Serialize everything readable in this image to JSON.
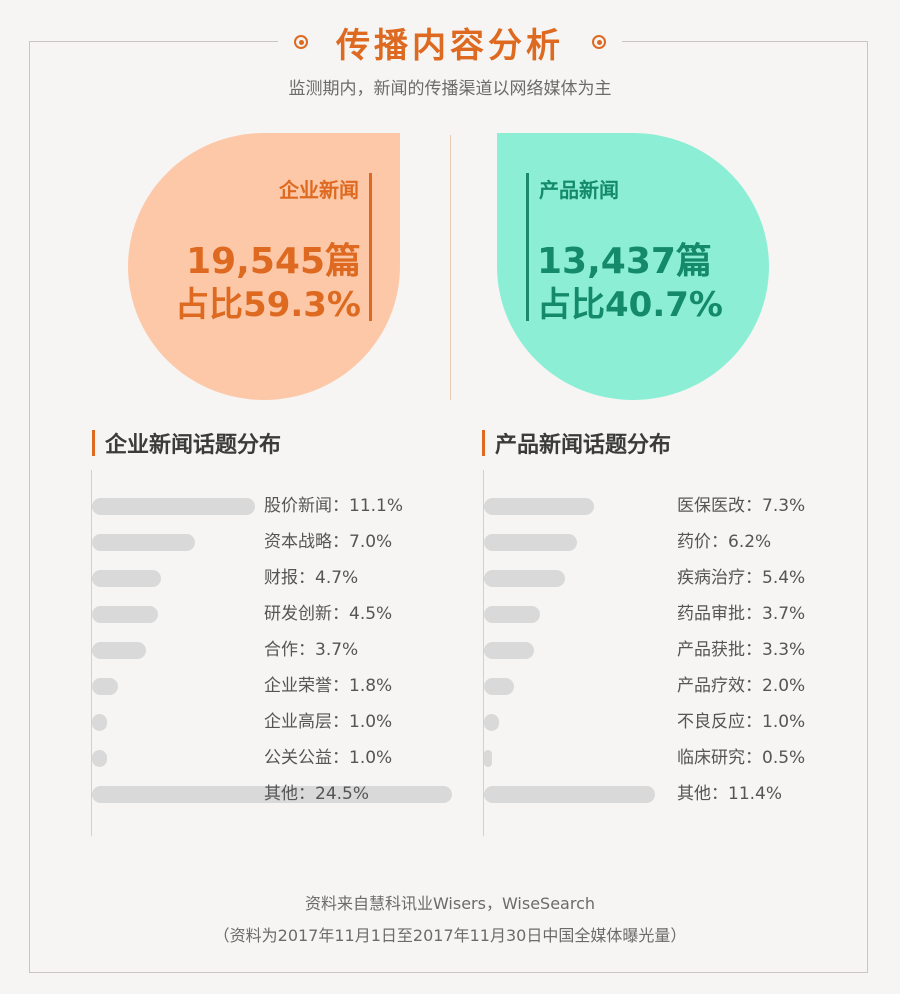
{
  "header": {
    "title": "传播内容分析",
    "subtitle": "监测期内，新闻的传播渠道以网络媒体为主"
  },
  "colors": {
    "accent_orange": "#dd6a20",
    "accent_green": "#148a6a",
    "drop_orange": "#fdc8a8",
    "drop_green": "#8cefd5",
    "bar_gray": "#d9d9d9"
  },
  "summary": {
    "corporate": {
      "label": "企业新闻",
      "count": "19,545篇",
      "share": "占比59.3%"
    },
    "product": {
      "label": "产品新闻",
      "count": "13,437篇",
      "share": "占比40.7%"
    }
  },
  "chart_data": [
    {
      "type": "pie",
      "categories": [
        "企业新闻",
        "产品新闻"
      ],
      "values": [
        59.3,
        40.7
      ],
      "counts": [
        19545,
        13437
      ],
      "unit": "%"
    },
    {
      "type": "bar",
      "orientation": "horizontal",
      "title": "企业新闻话题分布",
      "categories": [
        "股价新闻",
        "资本战略",
        "财报",
        "研发创新",
        "合作",
        "企业荣誉",
        "企业高层",
        "公关公益",
        "其他"
      ],
      "values": [
        11.1,
        7.0,
        4.7,
        4.5,
        3.7,
        1.8,
        1.0,
        1.0,
        24.5
      ],
      "labels": [
        "股价新闻：11.1%",
        "资本战略：7.0%",
        "财报：4.7%",
        "研发创新：4.5%",
        "合作：3.7%",
        "企业荣誉：1.8%",
        "企业高层：1.0%",
        "公关公益：1.0%",
        "其他：24.5%"
      ],
      "unit": "%"
    },
    {
      "type": "bar",
      "orientation": "horizontal",
      "title": "产品新闻话题分布",
      "categories": [
        "医保医改",
        "药价",
        "疾病治疗",
        "药品审批",
        "产品获批",
        "产品疗效",
        "不良反应",
        "临床研究",
        "其他"
      ],
      "values": [
        7.3,
        6.2,
        5.4,
        3.7,
        3.3,
        2.0,
        1.0,
        0.5,
        11.4
      ],
      "labels": [
        "医保医改：7.3%",
        "药价：6.2%",
        "疾病治疗：5.4%",
        "药品审批：3.7%",
        "产品获批：3.3%",
        "产品疗效：2.0%",
        "不良反应：1.0%",
        "临床研究：0.5%",
        "其他：11.4%"
      ],
      "unit": "%"
    }
  ],
  "footer": {
    "source": "资料来自慧科讯业Wisers，WiseSearch",
    "note": "（资料为2017年11月1日至2017年11月30日中国全媒体曝光量）"
  }
}
